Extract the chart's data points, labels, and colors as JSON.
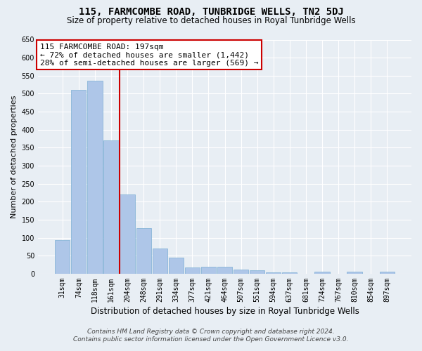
{
  "title": "115, FARMCOMBE ROAD, TUNBRIDGE WELLS, TN2 5DJ",
  "subtitle": "Size of property relative to detached houses in Royal Tunbridge Wells",
  "xlabel": "Distribution of detached houses by size in Royal Tunbridge Wells",
  "ylabel": "Number of detached properties",
  "footer_line1": "Contains HM Land Registry data © Crown copyright and database right 2024.",
  "footer_line2": "Contains public sector information licensed under the Open Government Licence v3.0.",
  "categories": [
    "31sqm",
    "74sqm",
    "118sqm",
    "161sqm",
    "204sqm",
    "248sqm",
    "291sqm",
    "334sqm",
    "377sqm",
    "421sqm",
    "464sqm",
    "507sqm",
    "551sqm",
    "594sqm",
    "637sqm",
    "681sqm",
    "724sqm",
    "767sqm",
    "810sqm",
    "854sqm",
    "897sqm"
  ],
  "values": [
    93,
    510,
    535,
    370,
    220,
    127,
    70,
    44,
    17,
    20,
    20,
    11,
    10,
    3,
    3,
    0,
    5,
    0,
    5,
    0,
    5
  ],
  "bar_color": "#aec6e8",
  "bar_edge_color": "#7bafd4",
  "vline_x": 3.5,
  "vline_color": "#cc0000",
  "annotation_line1": "115 FARMCOMBE ROAD: 197sqm",
  "annotation_line2": "← 72% of detached houses are smaller (1,442)",
  "annotation_line3": "28% of semi-detached houses are larger (569) →",
  "annotation_box_color": "#ffffff",
  "annotation_box_edge_color": "#cc0000",
  "ylim": [
    0,
    650
  ],
  "yticks": [
    0,
    50,
    100,
    150,
    200,
    250,
    300,
    350,
    400,
    450,
    500,
    550,
    600,
    650
  ],
  "background_color": "#e8eef4",
  "grid_color": "#ffffff",
  "title_fontsize": 10,
  "subtitle_fontsize": 8.5,
  "ylabel_fontsize": 8,
  "xlabel_fontsize": 8.5,
  "tick_fontsize": 7,
  "annotation_fontsize": 8,
  "footer_fontsize": 6.5
}
